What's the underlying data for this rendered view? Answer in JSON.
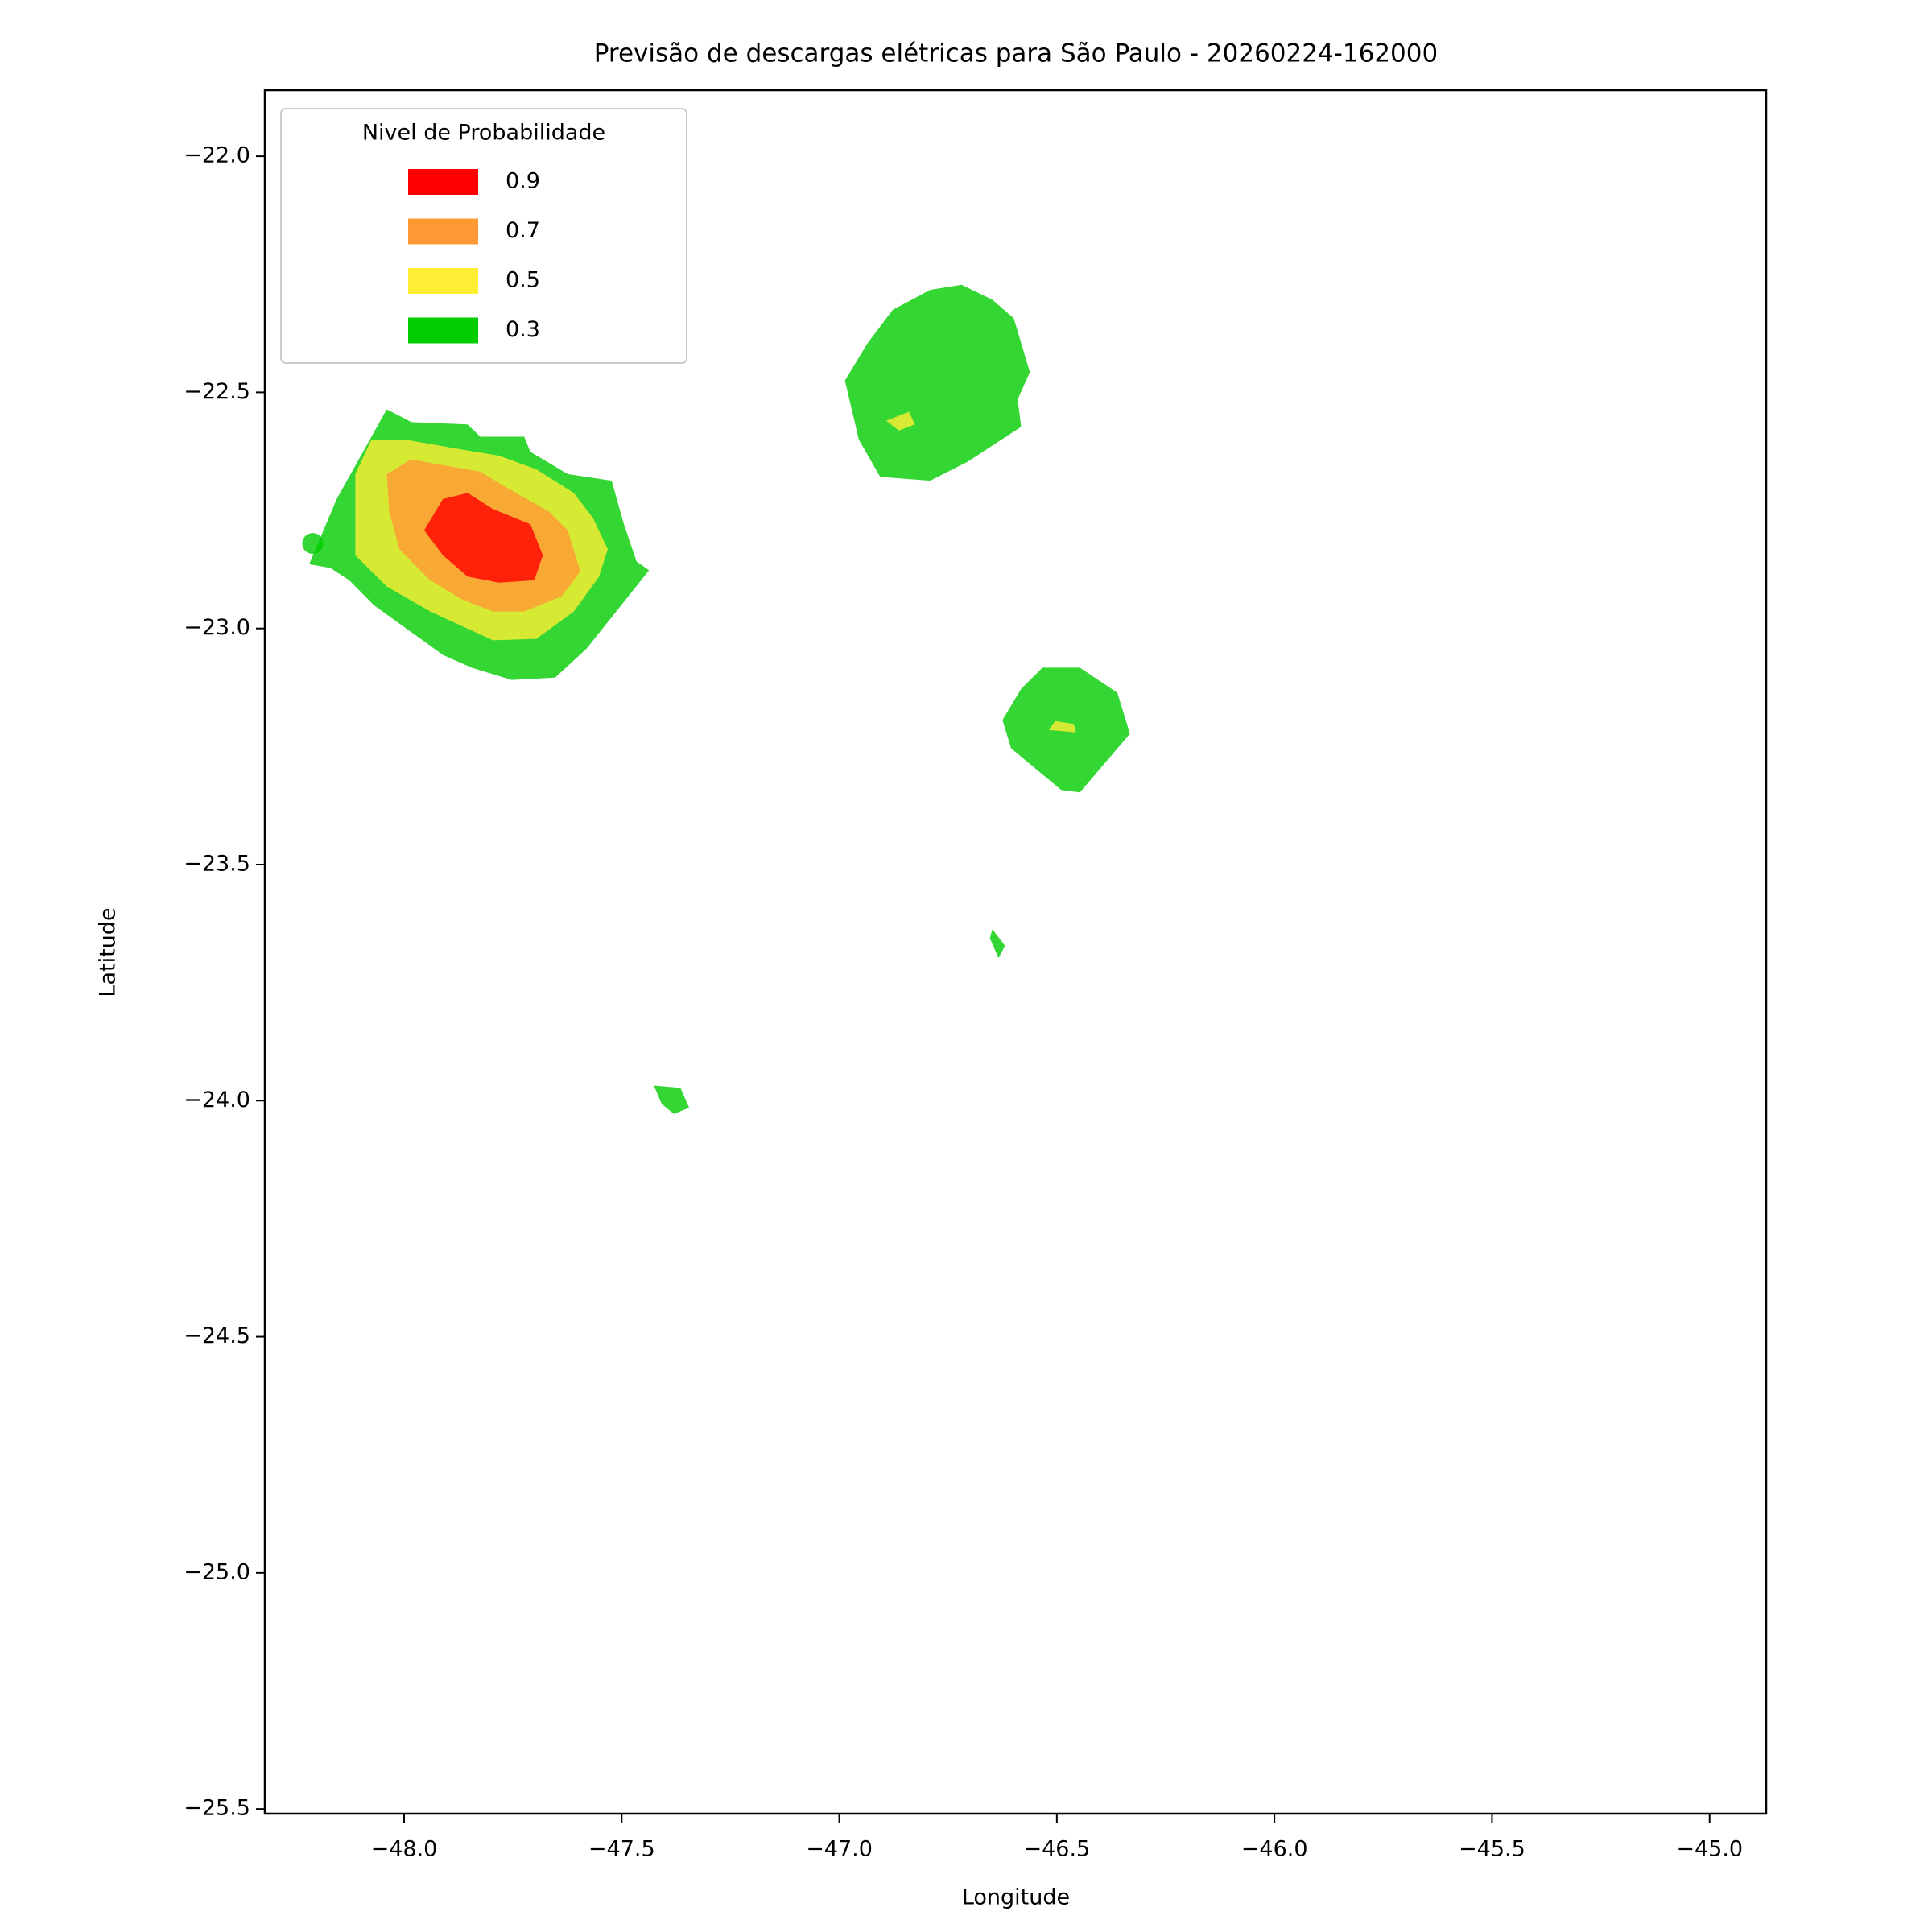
{
  "chart_data": {
    "type": "contour",
    "title": "Previsão de descargas elétricas para São Paulo - 20260224-162000",
    "xlabel": "Longitude",
    "ylabel": "Latitude",
    "xlim": [
      -48.32,
      -44.87
    ],
    "ylim": [
      -25.51,
      -21.86
    ],
    "xticks": [
      {
        "value": -48.0,
        "label": "−48.0"
      },
      {
        "value": -47.5,
        "label": "−47.5"
      },
      {
        "value": -47.0,
        "label": "−47.0"
      },
      {
        "value": -46.5,
        "label": "−46.5"
      },
      {
        "value": -46.0,
        "label": "−46.0"
      },
      {
        "value": -45.5,
        "label": "−45.5"
      },
      {
        "value": -45.0,
        "label": "−45.0"
      }
    ],
    "yticks": [
      {
        "value": -22.0,
        "label": "−22.0"
      },
      {
        "value": -22.5,
        "label": "−22.5"
      },
      {
        "value": -23.0,
        "label": "−23.0"
      },
      {
        "value": -23.5,
        "label": "−23.5"
      },
      {
        "value": -24.0,
        "label": "−24.0"
      },
      {
        "value": -24.5,
        "label": "−24.5"
      },
      {
        "value": -25.0,
        "label": "−25.0"
      },
      {
        "value": -25.5,
        "label": "−25.5"
      }
    ],
    "legend_title": "Nivel de Probabilidade",
    "legend_position": "upper left",
    "alpha": 0.8,
    "series": [
      {
        "name": "0.9",
        "color": "#ff0000",
        "polygons": [
          [
            [
              -47.954,
              -22.792
            ],
            [
              -47.911,
              -22.726
            ],
            [
              -47.854,
              -22.713
            ],
            [
              -47.796,
              -22.747
            ],
            [
              -47.71,
              -22.779
            ],
            [
              -47.681,
              -22.845
            ],
            [
              -47.701,
              -22.898
            ],
            [
              -47.782,
              -22.903
            ],
            [
              -47.854,
              -22.89
            ],
            [
              -47.911,
              -22.845
            ]
          ]
        ]
      },
      {
        "name": "0.7",
        "color": "#ff9933",
        "polygons": [
          [
            [
              -48.04,
              -22.673
            ],
            [
              -47.983,
              -22.642
            ],
            [
              -47.825,
              -22.668
            ],
            [
              -47.767,
              -22.7
            ],
            [
              -47.667,
              -22.753
            ],
            [
              -47.624,
              -22.792
            ],
            [
              -47.595,
              -22.879
            ],
            [
              -47.638,
              -22.932
            ],
            [
              -47.724,
              -22.964
            ],
            [
              -47.796,
              -22.964
            ],
            [
              -47.868,
              -22.938
            ],
            [
              -47.94,
              -22.898
            ],
            [
              -48.011,
              -22.832
            ],
            [
              -48.034,
              -22.753
            ]
          ]
        ]
      },
      {
        "name": "0.5",
        "color": "#ffee33",
        "polygons": [
          [
            [
              -48.112,
              -22.673
            ],
            [
              -48.075,
              -22.6
            ],
            [
              -47.997,
              -22.6
            ],
            [
              -47.868,
              -22.621
            ],
            [
              -47.782,
              -22.634
            ],
            [
              -47.696,
              -22.663
            ],
            [
              -47.61,
              -22.713
            ],
            [
              -47.566,
              -22.766
            ],
            [
              -47.532,
              -22.832
            ],
            [
              -47.552,
              -22.89
            ],
            [
              -47.61,
              -22.964
            ],
            [
              -47.696,
              -23.022
            ],
            [
              -47.796,
              -23.025
            ],
            [
              -47.94,
              -22.964
            ],
            [
              -48.04,
              -22.911
            ],
            [
              -48.112,
              -22.845
            ]
          ],
          [
            [
              -46.892,
              -22.56
            ],
            [
              -46.84,
              -22.541
            ],
            [
              -46.826,
              -22.568
            ],
            [
              -46.863,
              -22.581
            ]
          ],
          [
            [
              -46.519,
              -23.215
            ],
            [
              -46.504,
              -23.196
            ],
            [
              -46.461,
              -23.202
            ],
            [
              -46.456,
              -23.22
            ]
          ]
        ]
      },
      {
        "name": "0.3",
        "color": "#00cc00",
        "polygons": [
          [
            [
              -48.218,
              -22.864
            ],
            [
              -48.155,
              -22.726
            ],
            [
              -48.04,
              -22.536
            ],
            [
              -47.983,
              -22.563
            ],
            [
              -47.854,
              -22.568
            ],
            [
              -47.825,
              -22.594
            ],
            [
              -47.724,
              -22.594
            ],
            [
              -47.71,
              -22.626
            ],
            [
              -47.624,
              -22.673
            ],
            [
              -47.523,
              -22.687
            ],
            [
              -47.495,
              -22.779
            ],
            [
              -47.466,
              -22.858
            ],
            [
              -47.437,
              -22.877
            ],
            [
              -47.581,
              -23.043
            ],
            [
              -47.653,
              -23.104
            ],
            [
              -47.753,
              -23.109
            ],
            [
              -47.845,
              -23.083
            ],
            [
              -47.911,
              -23.056
            ],
            [
              -48.069,
              -22.951
            ],
            [
              -48.126,
              -22.898
            ],
            [
              -48.169,
              -22.872
            ]
          ],
          [
            [
              -46.987,
              -22.475
            ],
            [
              -46.935,
              -22.396
            ],
            [
              -46.877,
              -22.325
            ],
            [
              -46.791,
              -22.283
            ],
            [
              -46.719,
              -22.272
            ],
            [
              -46.648,
              -22.304
            ],
            [
              -46.599,
              -22.343
            ],
            [
              -46.562,
              -22.457
            ],
            [
              -46.59,
              -22.515
            ],
            [
              -46.582,
              -22.573
            ],
            [
              -46.705,
              -22.647
            ],
            [
              -46.791,
              -22.687
            ],
            [
              -46.906,
              -22.679
            ],
            [
              -46.955,
              -22.6
            ]
          ],
          [
            [
              -46.625,
              -23.194
            ],
            [
              -46.582,
              -23.128
            ],
            [
              -46.533,
              -23.083
            ],
            [
              -46.447,
              -23.083
            ],
            [
              -46.361,
              -23.136
            ],
            [
              -46.332,
              -23.223
            ],
            [
              -46.447,
              -23.347
            ],
            [
              -46.49,
              -23.342
            ],
            [
              -46.605,
              -23.254
            ]
          ],
          [
            [
              -46.648,
              -23.637
            ],
            [
              -46.619,
              -23.672
            ],
            [
              -46.634,
              -23.698
            ],
            [
              -46.654,
              -23.656
            ]
          ],
          [
            [
              -47.426,
              -23.968
            ],
            [
              -47.365,
              -23.973
            ],
            [
              -47.345,
              -24.015
            ],
            [
              -47.38,
              -24.028
            ],
            [
              -47.408,
              -24.007
            ]
          ]
        ]
      }
    ],
    "points": {
      "color": "#00cc00",
      "x": [
        -48.21
      ],
      "y": [
        -22.82
      ]
    }
  }
}
